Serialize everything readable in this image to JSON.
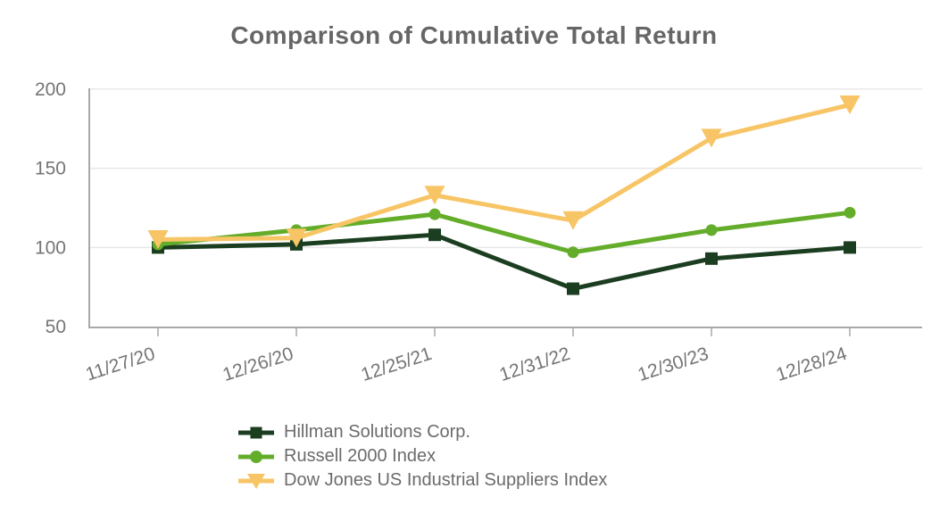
{
  "chart_data": {
    "type": "line",
    "title": "Comparison of Cumulative Total Return",
    "categories": [
      "11/27/20",
      "12/26/20",
      "12/25/21",
      "12/31/22",
      "12/30/23",
      "12/28/24"
    ],
    "series": [
      {
        "name": "Hillman Solutions Corp.",
        "color": "#1b3e21",
        "marker": "square",
        "values": [
          100,
          102,
          108,
          74,
          93,
          100
        ]
      },
      {
        "name": "Russell 2000 Index",
        "color": "#64ad2a",
        "marker": "circle",
        "values": [
          102,
          111,
          121,
          97,
          111,
          122
        ]
      },
      {
        "name": "Dow Jones US Industrial Suppliers Index",
        "color": "#f7c566",
        "marker": "triangle-down",
        "values": [
          105,
          106,
          133,
          117,
          169,
          190
        ]
      }
    ],
    "yticks": [
      50,
      100,
      150,
      200
    ],
    "ylim": [
      50,
      202
    ],
    "xlabel": "",
    "ylabel": "",
    "grid": "horizontal",
    "legend_position": "bottom-center-left",
    "x_tick_rotation_deg": -18,
    "colors": {
      "title": "#666666",
      "axis": "#a8a8a8",
      "gridline": "#e8e8e8",
      "tick_labels": "#757575",
      "legend_text": "#6b6b6b",
      "background": "#ffffff"
    }
  }
}
